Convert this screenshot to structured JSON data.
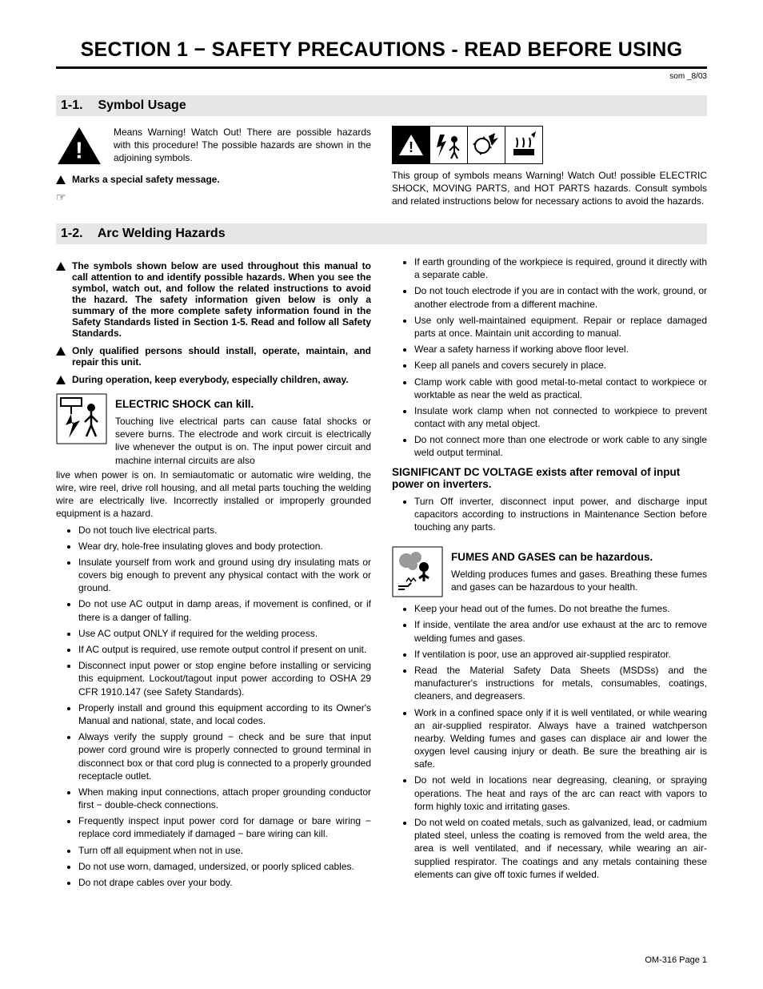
{
  "doc": {
    "section_title": "SECTION 1 − SAFETY PRECAUTIONS - READ BEFORE USING",
    "rev_note": "som _8/03",
    "footer": "OM-316 Page 1"
  },
  "s1": {
    "num": "1-1.",
    "title": "Symbol Usage",
    "warn_text": "Means Warning! Watch Out! There are possible hazards with this procedure! The possible hazards are shown in the adjoining symbols.",
    "marks_text": "Marks a special safety message.",
    "group_text": "This group of symbols means Warning! Watch Out! possible ELECTRIC SHOCK, MOVING PARTS, and HOT PARTS hazards. Consult symbols and related instructions below for necessary actions to avoid the hazards."
  },
  "s2": {
    "num": "1-2.",
    "title": "Arc Welding Hazards",
    "intro": [
      "The symbols shown below are used throughout this manual to call attention to and identify possible hazards. When you see the symbol, watch out, and follow the related instructions to avoid the hazard. The safety information given below is only a summary of the more complete safety information found in the Safety Standards listed in Section 1-5. Read and follow all Safety Standards.",
      "Only qualified persons should install, operate, maintain, and repair this unit.",
      "During operation, keep everybody, especially children, away."
    ],
    "electric": {
      "title": "ELECTRIC SHOCK can kill.",
      "lead": "Touching live electrical parts can cause fatal shocks or severe burns. The electrode and work circuit is electrically live whenever the output is on. The input power circuit and machine internal circuits are also live when power is on. In semiautomatic or automatic wire welding, the wire, wire reel, drive roll housing, and all metal parts touching the welding wire are electrically live. Incorrectly installed or improperly grounded equipment is a hazard.",
      "bullets": [
        "Do not touch live electrical parts.",
        "Wear dry, hole-free insulating gloves and body protection.",
        "Insulate yourself from work and ground using dry insulating mats or covers big enough to prevent any physical contact with the work or ground.",
        "Do not use AC output in damp areas, if movement is confined, or if there is a danger of falling.",
        "Use AC output ONLY if required for the welding process.",
        "If AC output is required, use remote output control if present on unit.",
        "Disconnect input power or stop engine before installing or servicing this equipment. Lockout/tagout input power according to OSHA 29 CFR 1910.147 (see Safety Standards).",
        "Properly install and ground this equipment according to its Owner's Manual and national, state, and local codes.",
        "Always verify the supply ground − check and be sure that input power cord ground wire is properly connected to ground terminal in disconnect box or that cord plug is connected to a properly grounded receptacle outlet.",
        "When making input connections, attach proper grounding conductor first − double-check connections.",
        "Frequently inspect input power cord for damage or bare wiring − replace cord immediately if damaged − bare wiring can kill.",
        "Turn off all equipment when not in use.",
        "Do not use worn, damaged, undersized, or poorly spliced cables.",
        "Do not drape cables over your body."
      ]
    },
    "electric_right_bullets": [
      "If earth grounding of the workpiece is required, ground it directly with a separate cable.",
      "Do not touch electrode if you are in contact with the work, ground, or another electrode from a different machine.",
      "Use only well-maintained equipment. Repair or replace damaged parts at once. Maintain unit according to manual.",
      "Wear a safety harness if working above floor level.",
      "Keep all panels and covers securely in place.",
      "Clamp work cable with good metal-to-metal contact to workpiece or worktable as near the weld as practical.",
      "Insulate work clamp when not connected to workpiece to prevent contact with any metal object.",
      "Do not connect more than one electrode or work cable to any single weld output terminal."
    ],
    "dc_voltage": {
      "title": "SIGNIFICANT DC VOLTAGE exists after removal of input power on inverters.",
      "bullets": [
        "Turn Off inverter, disconnect input power, and discharge input capacitors according to instructions in Maintenance Section before touching any parts."
      ]
    },
    "fumes": {
      "title": "FUMES AND GASES can be hazardous.",
      "lead": "Welding produces fumes and gases. Breathing these fumes and gases can be hazardous to your health.",
      "bullets": [
        "Keep your head out of the fumes. Do not breathe the fumes.",
        "If inside, ventilate the area and/or use exhaust at the arc to remove welding fumes and gases.",
        "If ventilation is poor, use an approved air-supplied respirator.",
        "Read the Material Safety Data Sheets (MSDSs) and the manufacturer's instructions for metals, consumables, coatings, cleaners, and degreasers.",
        "Work in a confined space only if it is well ventilated, or while wearing an air-supplied respirator. Always have a trained watchperson nearby. Welding fumes and gases can displace air and lower the oxygen level causing injury or death. Be sure the breathing air is safe.",
        "Do not weld in locations near degreasing, cleaning, or spraying operations. The heat and rays of the arc can react with vapors to form highly toxic and irritating gases.",
        "Do not weld on coated metals, such as galvanized, lead, or cadmium plated steel, unless the coating is removed from the weld area, the area is well ventilated, and if necessary, while wearing an air-supplied respirator. The coatings and any metals containing these elements can give off toxic fumes if welded."
      ]
    }
  },
  "colors": {
    "heading_bg": "#e6e6e6",
    "text": "#000000",
    "page_bg": "#ffffff"
  }
}
